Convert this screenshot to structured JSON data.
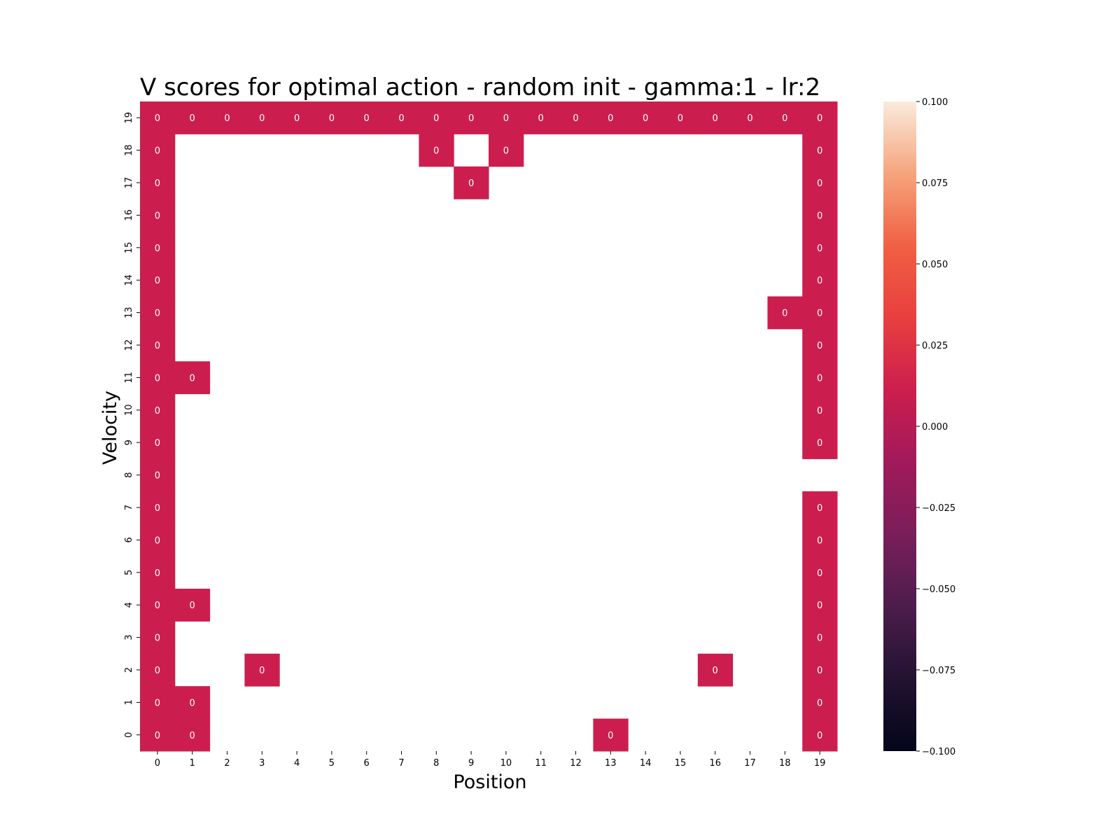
{
  "chart_data": {
    "type": "heatmap",
    "title": "V scores for optimal action - random init - gamma:1 - lr:2",
    "xlabel": "Position",
    "ylabel": "Velocity",
    "x_categories": [
      "0",
      "1",
      "2",
      "3",
      "4",
      "5",
      "6",
      "7",
      "8",
      "9",
      "10",
      "11",
      "12",
      "13",
      "14",
      "15",
      "16",
      "17",
      "18",
      "19"
    ],
    "y_categories": [
      "0",
      "1",
      "2",
      "3",
      "4",
      "5",
      "6",
      "7",
      "8",
      "9",
      "10",
      "11",
      "12",
      "13",
      "14",
      "15",
      "16",
      "17",
      "18",
      "19"
    ],
    "y_order": "ascending-from-bottom",
    "cells": [
      {
        "x": 0,
        "y": 19,
        "value": 0
      },
      {
        "x": 1,
        "y": 19,
        "value": 0
      },
      {
        "x": 2,
        "y": 19,
        "value": 0
      },
      {
        "x": 3,
        "y": 19,
        "value": 0
      },
      {
        "x": 4,
        "y": 19,
        "value": 0
      },
      {
        "x": 5,
        "y": 19,
        "value": 0
      },
      {
        "x": 6,
        "y": 19,
        "value": 0
      },
      {
        "x": 7,
        "y": 19,
        "value": 0
      },
      {
        "x": 8,
        "y": 19,
        "value": 0
      },
      {
        "x": 9,
        "y": 19,
        "value": 0
      },
      {
        "x": 10,
        "y": 19,
        "value": 0
      },
      {
        "x": 11,
        "y": 19,
        "value": 0
      },
      {
        "x": 12,
        "y": 19,
        "value": 0
      },
      {
        "x": 13,
        "y": 19,
        "value": 0
      },
      {
        "x": 14,
        "y": 19,
        "value": 0
      },
      {
        "x": 15,
        "y": 19,
        "value": 0
      },
      {
        "x": 16,
        "y": 19,
        "value": 0
      },
      {
        "x": 17,
        "y": 19,
        "value": 0
      },
      {
        "x": 18,
        "y": 19,
        "value": 0
      },
      {
        "x": 19,
        "y": 19,
        "value": 0
      },
      {
        "x": 0,
        "y": 18,
        "value": 0
      },
      {
        "x": 8,
        "y": 18,
        "value": 0
      },
      {
        "x": 10,
        "y": 18,
        "value": 0
      },
      {
        "x": 19,
        "y": 18,
        "value": 0
      },
      {
        "x": 0,
        "y": 17,
        "value": 0
      },
      {
        "x": 9,
        "y": 17,
        "value": 0
      },
      {
        "x": 19,
        "y": 17,
        "value": 0
      },
      {
        "x": 0,
        "y": 16,
        "value": 0
      },
      {
        "x": 19,
        "y": 16,
        "value": 0
      },
      {
        "x": 0,
        "y": 15,
        "value": 0
      },
      {
        "x": 19,
        "y": 15,
        "value": 0
      },
      {
        "x": 0,
        "y": 14,
        "value": 0
      },
      {
        "x": 19,
        "y": 14,
        "value": 0
      },
      {
        "x": 0,
        "y": 13,
        "value": 0
      },
      {
        "x": 18,
        "y": 13,
        "value": 0
      },
      {
        "x": 19,
        "y": 13,
        "value": 0
      },
      {
        "x": 0,
        "y": 12,
        "value": 0
      },
      {
        "x": 19,
        "y": 12,
        "value": 0
      },
      {
        "x": 0,
        "y": 11,
        "value": 0
      },
      {
        "x": 1,
        "y": 11,
        "value": 0
      },
      {
        "x": 19,
        "y": 11,
        "value": 0
      },
      {
        "x": 0,
        "y": 10,
        "value": 0
      },
      {
        "x": 19,
        "y": 10,
        "value": 0
      },
      {
        "x": 0,
        "y": 9,
        "value": 0
      },
      {
        "x": 19,
        "y": 9,
        "value": 0
      },
      {
        "x": 0,
        "y": 8,
        "value": 0
      },
      {
        "x": 0,
        "y": 7,
        "value": 0
      },
      {
        "x": 19,
        "y": 7,
        "value": 0
      },
      {
        "x": 0,
        "y": 6,
        "value": 0
      },
      {
        "x": 19,
        "y": 6,
        "value": 0
      },
      {
        "x": 0,
        "y": 5,
        "value": 0
      },
      {
        "x": 19,
        "y": 5,
        "value": 0
      },
      {
        "x": 0,
        "y": 4,
        "value": 0
      },
      {
        "x": 1,
        "y": 4,
        "value": 0
      },
      {
        "x": 19,
        "y": 4,
        "value": 0
      },
      {
        "x": 0,
        "y": 3,
        "value": 0
      },
      {
        "x": 19,
        "y": 3,
        "value": 0
      },
      {
        "x": 0,
        "y": 2,
        "value": 0
      },
      {
        "x": 3,
        "y": 2,
        "value": 0
      },
      {
        "x": 16,
        "y": 2,
        "value": 0
      },
      {
        "x": 19,
        "y": 2,
        "value": 0
      },
      {
        "x": 0,
        "y": 1,
        "value": 0
      },
      {
        "x": 1,
        "y": 1,
        "value": 0
      },
      {
        "x": 19,
        "y": 1,
        "value": 0
      },
      {
        "x": 0,
        "y": 0,
        "value": 0
      },
      {
        "x": 1,
        "y": 0,
        "value": 0
      },
      {
        "x": 13,
        "y": 0,
        "value": 0
      },
      {
        "x": 19,
        "y": 0,
        "value": 0
      }
    ],
    "empty_cells": "blank (white)",
    "cell_color": "#cc1e4e",
    "colorbar": {
      "range": [
        -0.1,
        0.1
      ],
      "ticks": [
        "0.100",
        "0.075",
        "0.050",
        "0.025",
        "0.000",
        "−0.025",
        "−0.050",
        "−0.075",
        "−0.100"
      ],
      "colors": [
        "#03051a",
        "#221331",
        "#4c1d4b",
        "#7a1e5a",
        "#a11a5b",
        "#cc1e4e",
        "#e83f3f",
        "#f06043",
        "#f6a47c",
        "#faebdd"
      ]
    },
    "grid": false
  }
}
